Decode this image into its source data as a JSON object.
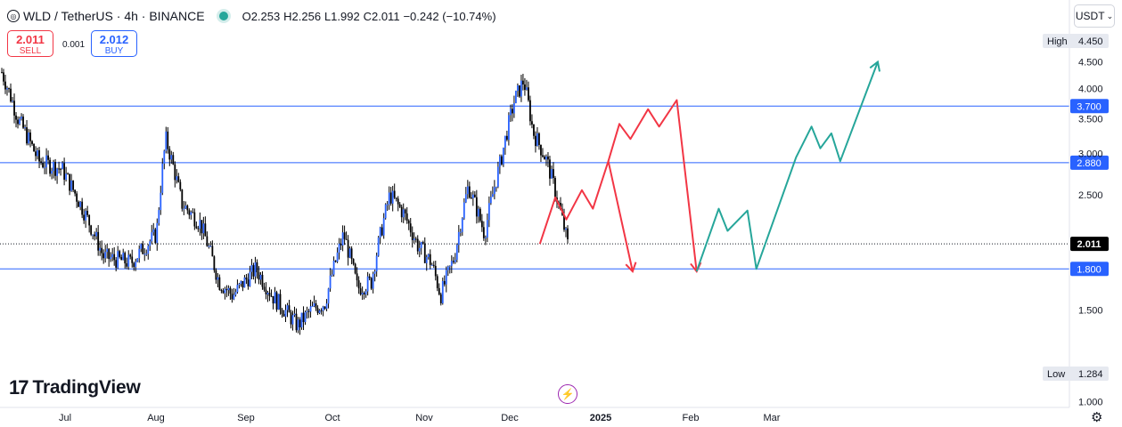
{
  "header": {
    "symbol": "WLD / TetherUS · 4h · BINANCE",
    "icon": "wld-coin-icon",
    "open": "O2.253",
    "high": "H2.256",
    "low": "L1.992",
    "close": "C2.011",
    "change": "−0.242 (−10.74%)"
  },
  "trade": {
    "sell_price": "2.011",
    "sell_label": "SELL",
    "spread": "0.001",
    "buy_price": "2.012",
    "buy_label": "BUY"
  },
  "currency": "USDT",
  "brand": "TradingView",
  "colors": {
    "up": "#26a69a",
    "down": "#f23645",
    "line": "#2962ff",
    "candle": "#000000"
  },
  "chart_data": {
    "type": "candlestick",
    "timeframe": "4h",
    "y_scale": "log",
    "ylim": [
      1.0,
      4.5
    ],
    "y_ticks": [
      "1.000",
      "1.500",
      "2.500",
      "3.000",
      "3.500",
      "4.000",
      "4.500"
    ],
    "x_ticks": [
      "Jul",
      "Aug",
      "Sep",
      "Oct",
      "Nov",
      "Dec",
      "2025",
      "Feb",
      "Mar"
    ],
    "price_path": [
      {
        "t": 0.0,
        "p": 4.3
      },
      {
        "t": 0.35,
        "p": 3.5
      },
      {
        "t": 0.8,
        "p": 2.9
      },
      {
        "t": 1.3,
        "p": 2.8
      },
      {
        "t": 2.2,
        "p": 1.9
      },
      {
        "t": 2.8,
        "p": 1.85
      },
      {
        "t": 3.35,
        "p": 2.1
      },
      {
        "t": 3.55,
        "p": 3.2
      },
      {
        "t": 3.9,
        "p": 2.4
      },
      {
        "t": 4.3,
        "p": 2.2
      },
      {
        "t": 4.7,
        "p": 1.7
      },
      {
        "t": 5.0,
        "p": 1.6
      },
      {
        "t": 5.5,
        "p": 1.8
      },
      {
        "t": 5.85,
        "p": 1.6
      },
      {
        "t": 6.4,
        "p": 1.4
      },
      {
        "t": 6.7,
        "p": 1.5
      },
      {
        "t": 7.0,
        "p": 1.55
      },
      {
        "t": 7.4,
        "p": 2.1
      },
      {
        "t": 7.7,
        "p": 1.65
      },
      {
        "t": 8.0,
        "p": 1.7
      },
      {
        "t": 8.4,
        "p": 2.5
      },
      {
        "t": 8.7,
        "p": 2.3
      },
      {
        "t": 9.0,
        "p": 2.0
      },
      {
        "t": 9.3,
        "p": 1.85
      },
      {
        "t": 9.5,
        "p": 1.6
      },
      {
        "t": 9.8,
        "p": 1.9
      },
      {
        "t": 10.1,
        "p": 2.6
      },
      {
        "t": 10.45,
        "p": 2.1
      },
      {
        "t": 10.8,
        "p": 2.9
      },
      {
        "t": 11.1,
        "p": 3.8
      },
      {
        "t": 11.3,
        "p": 4.15
      },
      {
        "t": 11.5,
        "p": 3.3
      },
      {
        "t": 11.8,
        "p": 2.9
      },
      {
        "t": 12.05,
        "p": 2.4
      },
      {
        "t": 12.25,
        "p": 2.01
      }
    ],
    "horizontal_levels": [
      {
        "value": 3.7,
        "label": "3.700"
      },
      {
        "value": 2.88,
        "label": "2.880"
      },
      {
        "value": 1.8,
        "label": "1.800"
      }
    ],
    "current_price": {
      "value": 2.011,
      "label": "2.011"
    },
    "high": {
      "label": "High",
      "value": "4.450"
    },
    "low": {
      "label": "Low",
      "value": "1.284"
    },
    "projection_bearish": [
      {
        "t": 12.25,
        "p": 2.01
      },
      {
        "t": 12.6,
        "p": 2.47
      },
      {
        "t": 12.85,
        "p": 2.24
      },
      {
        "t": 13.2,
        "p": 2.55
      },
      {
        "t": 13.45,
        "p": 2.35
      },
      {
        "t": 13.8,
        "p": 2.9
      },
      {
        "t": 14.35,
        "p": 1.78
      }
    ],
    "projection_bearish_2": [
      {
        "t": 13.8,
        "p": 2.9
      },
      {
        "t": 14.05,
        "p": 3.42
      },
      {
        "t": 14.3,
        "p": 3.2
      },
      {
        "t": 14.7,
        "p": 3.65
      },
      {
        "t": 14.95,
        "p": 3.38
      },
      {
        "t": 15.35,
        "p": 3.8
      },
      {
        "t": 15.8,
        "p": 1.78
      }
    ],
    "projection_bullish": [
      {
        "t": 15.8,
        "p": 1.78
      },
      {
        "t": 16.3,
        "p": 2.35
      },
      {
        "t": 16.5,
        "p": 2.13
      },
      {
        "t": 16.95,
        "p": 2.33
      },
      {
        "t": 17.15,
        "p": 1.8
      },
      {
        "t": 18.05,
        "p": 2.95
      },
      {
        "t": 18.4,
        "p": 3.38
      },
      {
        "t": 18.6,
        "p": 3.07
      },
      {
        "t": 18.85,
        "p": 3.28
      },
      {
        "t": 19.05,
        "p": 2.9
      },
      {
        "t": 19.9,
        "p": 4.5
      }
    ]
  }
}
